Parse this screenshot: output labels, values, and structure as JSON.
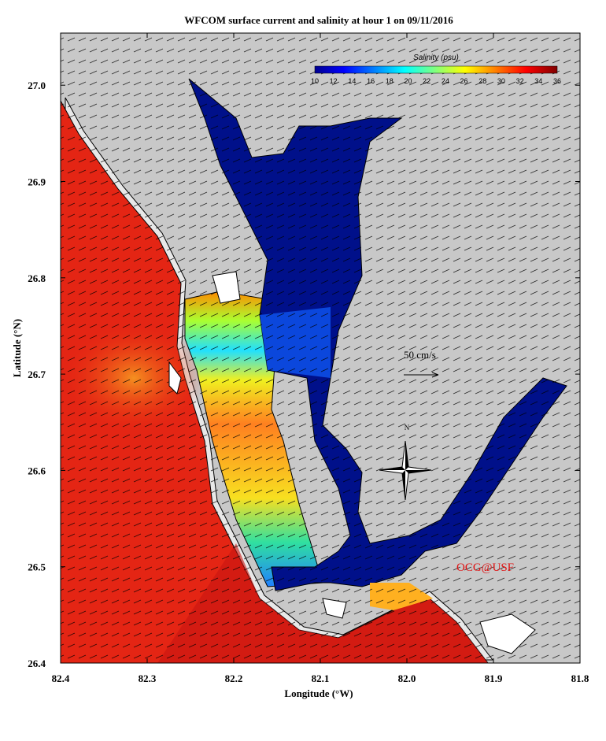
{
  "title": "WFCOM surface current and salinity at hour 1 on 09/11/2016",
  "x_axis": {
    "label": "Longitude (°W)",
    "ticks": [
      "82.4",
      "82.3",
      "82.2",
      "82.1",
      "82.0",
      "81.9",
      "81.8"
    ]
  },
  "y_axis": {
    "label": "Latitude (°N)",
    "ticks": [
      "26.4",
      "26.5",
      "26.6",
      "26.7",
      "26.8",
      "26.9",
      "27.0"
    ]
  },
  "colorbar": {
    "label": "Salinity (psu)",
    "ticks": [
      "10",
      "12",
      "14",
      "16",
      "18",
      "20",
      "22",
      "24",
      "26",
      "28",
      "30",
      "32",
      "34",
      "36"
    ]
  },
  "scale_arrow": {
    "label": "50 cm/s"
  },
  "compass": {
    "label": "N"
  },
  "credit": "OCG@USF"
}
